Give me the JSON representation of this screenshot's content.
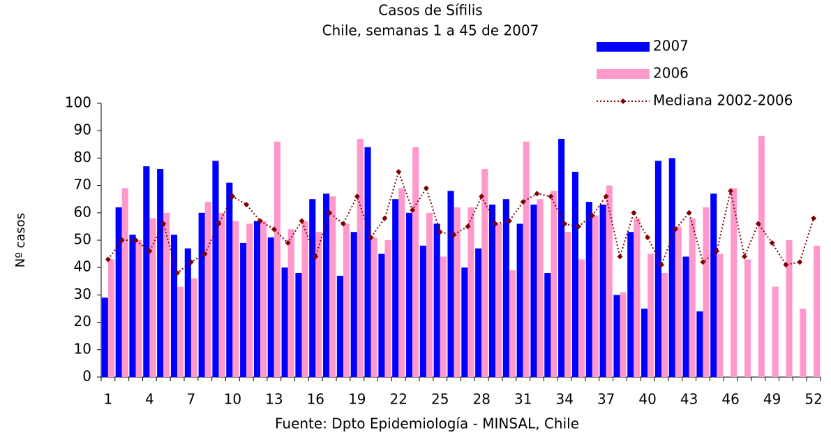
{
  "chart_data": {
    "type": "bar",
    "title": "Casos de Sífilis",
    "subtitle": "Chile, semanas 1 a 45 de 2007",
    "y_label": "Nº casos",
    "x_label": "Fuente: Dpto Epidemiología - MINSAL, Chile",
    "categories": [
      "1",
      null,
      null,
      "4",
      null,
      null,
      "7",
      null,
      null,
      "10",
      null,
      null,
      "13",
      null,
      null,
      "16",
      null,
      null,
      "19",
      null,
      null,
      "22",
      null,
      null,
      "25",
      null,
      null,
      "28",
      null,
      null,
      "31",
      null,
      null,
      "34",
      null,
      null,
      "37",
      null,
      null,
      "40",
      null,
      null,
      "43",
      null,
      null,
      "46",
      null,
      null,
      "49",
      null,
      null,
      "52"
    ],
    "series": [
      {
        "name": "2007",
        "type": "bar",
        "color": "#0000ff",
        "values": [
          29,
          62,
          52,
          77,
          76,
          52,
          47,
          60,
          79,
          71,
          49,
          57,
          51,
          40,
          38,
          65,
          67,
          37,
          53,
          84,
          45,
          65,
          60,
          48,
          56,
          68,
          40,
          47,
          63,
          65,
          56,
          63,
          38,
          87,
          75,
          64,
          63,
          30,
          53,
          25,
          79,
          80,
          44,
          24,
          67,
          null,
          null,
          null,
          null,
          null,
          null,
          null
        ]
      },
      {
        "name": "2006",
        "type": "bar",
        "color": "#ff99cc",
        "values": [
          43,
          69,
          50,
          58,
          60,
          33,
          36,
          64,
          60,
          57,
          56,
          57,
          86,
          54,
          57,
          53,
          66,
          56,
          87,
          51,
          50,
          69,
          84,
          60,
          44,
          62,
          62,
          76,
          56,
          39,
          86,
          65,
          68,
          53,
          43,
          59,
          70,
          31,
          58,
          45,
          38,
          55,
          58,
          62,
          45,
          69,
          43,
          88,
          33,
          50,
          25,
          48
        ]
      },
      {
        "name": "Mediana 2002-2006",
        "type": "line",
        "color": "#800000",
        "values": [
          43,
          50,
          50,
          46,
          56,
          38,
          42,
          45,
          56,
          66,
          63,
          57,
          54,
          49,
          57,
          44,
          60,
          56,
          66,
          51,
          58,
          75,
          61,
          69,
          53,
          52,
          55,
          66,
          56,
          57,
          64,
          67,
          66,
          56,
          55,
          59,
          66,
          44,
          60,
          51,
          41,
          54,
          60,
          42,
          46,
          68,
          44,
          56,
          49,
          41,
          42,
          58
        ]
      }
    ],
    "ylim": [
      0,
      100
    ],
    "yticks": [
      0,
      10,
      20,
      30,
      40,
      50,
      60,
      70,
      80,
      90,
      100
    ],
    "grid": false,
    "legend": "top-right"
  }
}
